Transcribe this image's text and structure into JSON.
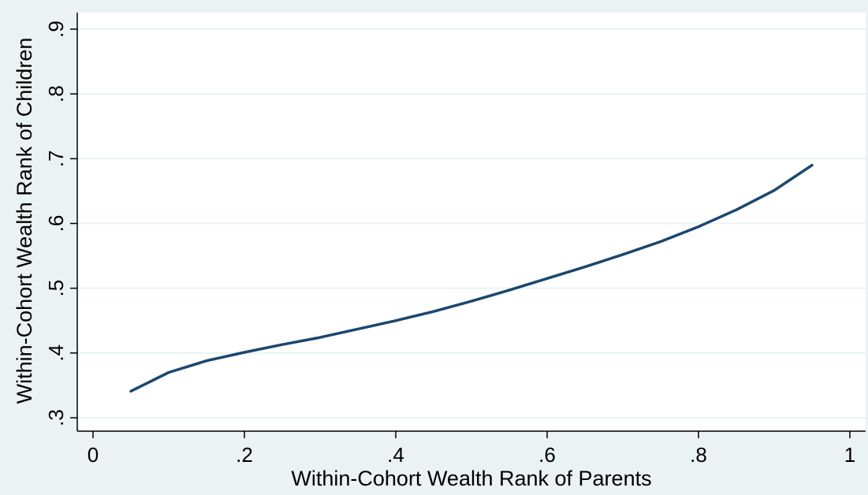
{
  "chart_data": {
    "type": "line",
    "title": "",
    "xlabel": "Within-Cohort Wealth Rank of Parents",
    "ylabel": "Within-Cohort Wealth Rank of Children",
    "xlim": [
      0,
      1
    ],
    "ylim": [
      0.3,
      0.9
    ],
    "x_ticks": [
      0,
      0.2,
      0.4,
      0.6,
      0.8,
      1
    ],
    "x_tick_labels": [
      "0",
      ".2",
      ".4",
      ".6",
      ".8",
      "1"
    ],
    "y_ticks": [
      0.3,
      0.4,
      0.5,
      0.6,
      0.7,
      0.8,
      0.9
    ],
    "y_tick_labels": [
      ".3",
      ".4",
      ".5",
      ".6",
      ".7",
      ".8",
      ".9"
    ],
    "grid": "horizontal",
    "legend": "none",
    "colors": {
      "page_background": "#eaf2f3",
      "plot_background": "#ffffff",
      "line": "#1a476f",
      "grid": "#eaf2f3"
    },
    "series": [
      {
        "x": [
          0.05,
          0.1,
          0.15,
          0.2,
          0.25,
          0.3,
          0.35,
          0.4,
          0.45,
          0.5,
          0.55,
          0.6,
          0.65,
          0.7,
          0.75,
          0.8,
          0.85,
          0.9,
          0.95
        ],
        "y": [
          0.341,
          0.37,
          0.388,
          0.401,
          0.413,
          0.424,
          0.437,
          0.45,
          0.464,
          0.48,
          0.497,
          0.515,
          0.533,
          0.552,
          0.572,
          0.595,
          0.621,
          0.651,
          0.69
        ]
      }
    ]
  }
}
